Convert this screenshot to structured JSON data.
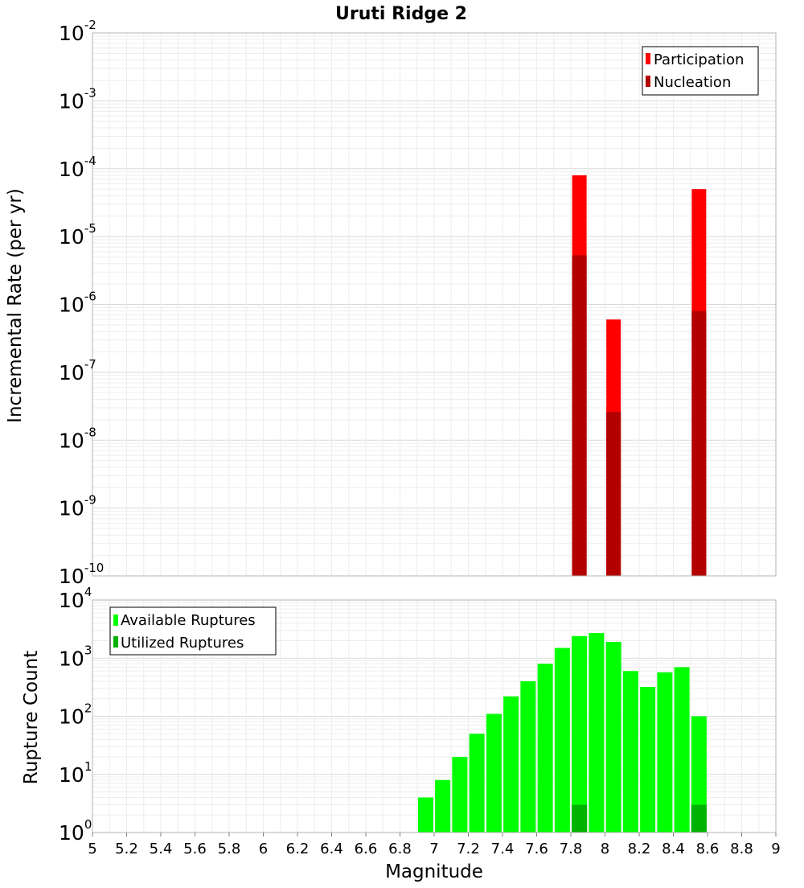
{
  "chart_data": [
    {
      "id": "rate",
      "type": "bar",
      "title": "Uruti Ridge 2",
      "xlabel": "",
      "ylabel": "Incremental Rate (per yr)",
      "yscale": "log",
      "xlim": [
        5,
        9
      ],
      "ylim_exponents": [
        -10,
        -2
      ],
      "y_ticks": [
        {
          "base": "10",
          "exp": "-10"
        },
        {
          "base": "10",
          "exp": "-9"
        },
        {
          "base": "10",
          "exp": "-8"
        },
        {
          "base": "10",
          "exp": "-7"
        },
        {
          "base": "10",
          "exp": "-6"
        },
        {
          "base": "10",
          "exp": "-5"
        },
        {
          "base": "10",
          "exp": "-4"
        },
        {
          "base": "10",
          "exp": "-3"
        },
        {
          "base": "10",
          "exp": "-2"
        }
      ],
      "legend_position": "top-right",
      "series": [
        {
          "name": "Participation",
          "color": "#ff0000",
          "x": [
            7.85,
            8.05,
            8.55
          ],
          "values": [
            8e-05,
            6e-07,
            5e-05
          ]
        },
        {
          "name": "Nucleation",
          "color": "#b30000",
          "x": [
            7.85,
            8.05,
            8.55
          ],
          "values": [
            5.3e-06,
            2.6e-08,
            8e-07
          ]
        }
      ]
    },
    {
      "id": "count",
      "type": "bar",
      "xlabel": "Magnitude",
      "ylabel": "Rupture Count",
      "yscale": "log",
      "xlim": [
        5,
        9
      ],
      "ylim_exponents": [
        0,
        4
      ],
      "y_ticks": [
        {
          "base": "10",
          "exp": "0"
        },
        {
          "base": "10",
          "exp": "1"
        },
        {
          "base": "10",
          "exp": "2"
        },
        {
          "base": "10",
          "exp": "3"
        },
        {
          "base": "10",
          "exp": "4"
        }
      ],
      "x_ticks": [
        "5",
        "5.2",
        "5.4",
        "5.6",
        "5.8",
        "6",
        "6.2",
        "6.4",
        "6.6",
        "6.8",
        "7",
        "7.2",
        "7.4",
        "7.6",
        "7.8",
        "8",
        "8.2",
        "8.4",
        "8.6",
        "8.8",
        "9"
      ],
      "legend_position": "top-left",
      "series": [
        {
          "name": "Available Ruptures",
          "color": "#00ff00",
          "x": [
            6.75,
            6.85,
            6.95,
            7.05,
            7.15,
            7.25,
            7.35,
            7.45,
            7.55,
            7.65,
            7.75,
            7.85,
            7.95,
            8.05,
            8.15,
            8.25,
            8.35,
            8.45,
            8.55
          ],
          "values": [
            1,
            1,
            4,
            8,
            20,
            50,
            110,
            220,
            400,
            800,
            1500,
            2400,
            2700,
            1900,
            600,
            320,
            570,
            700,
            100
          ]
        },
        {
          "name": "Utilized Ruptures",
          "color": "#00b300",
          "x": [
            7.85,
            8.05,
            8.55
          ],
          "values": [
            3,
            1,
            3
          ]
        }
      ]
    }
  ]
}
